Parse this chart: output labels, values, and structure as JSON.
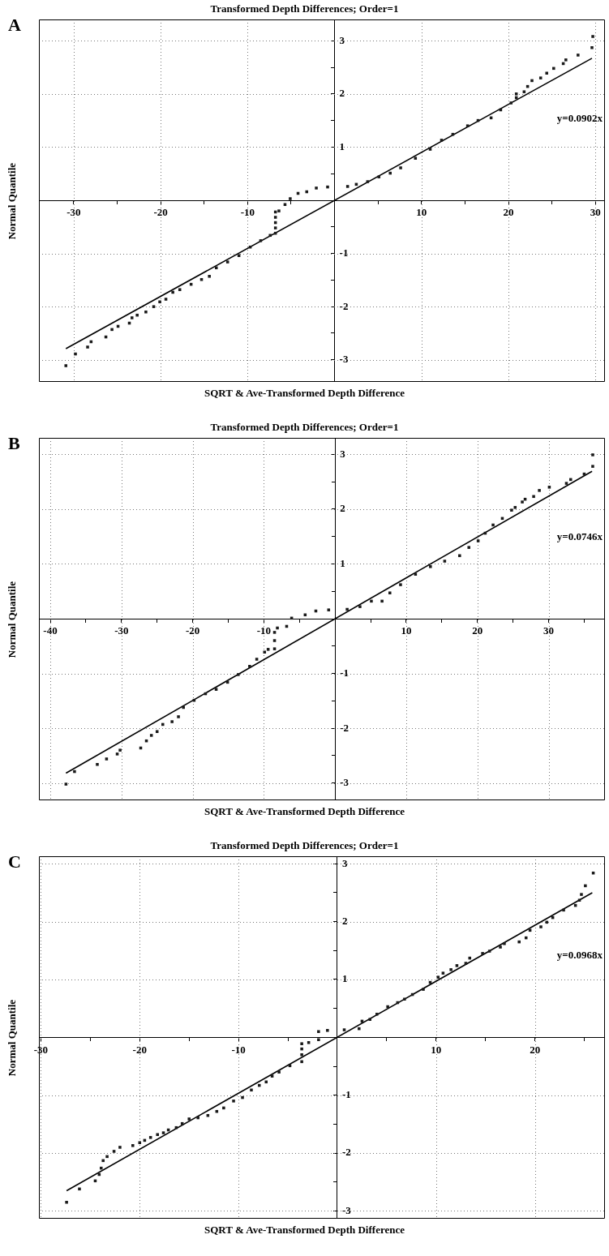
{
  "chart_data": [
    {
      "type": "scatter",
      "title": "Transformed Depth Differences; Order=1",
      "xlabel": "SQRT & Ave-Transformed Depth Difference",
      "ylabel": "Normal Quantile",
      "annotations": [
        "A",
        "y=0.0902x"
      ],
      "xlim": [
        -34,
        31
      ],
      "ylim": [
        -3.4,
        3.4
      ],
      "grid": true,
      "xticks": [
        -30,
        {
          "value": -25,
          "label": null
        },
        -20,
        {
          "value": -15,
          "label": null
        },
        -10,
        {
          "value": -5,
          "label": null
        },
        {
          "value": 0,
          "label": null
        },
        {
          "value": 5,
          "label": null
        },
        10,
        {
          "value": 15,
          "label": null
        },
        20,
        {
          "value": 25,
          "label": null
        },
        30
      ],
      "yticks": [
        -3,
        {
          "value": -2.5,
          "label": null
        },
        -2,
        {
          "value": -1.5,
          "label": null
        },
        -1,
        {
          "value": -0.5,
          "label": null
        },
        {
          "value": 0,
          "label": null
        },
        {
          "value": 0.5,
          "label": null
        },
        1,
        {
          "value": 1.5,
          "label": null
        },
        2,
        {
          "value": 2.5,
          "label": null
        },
        3
      ],
      "series": [
        {
          "color": "#1a1a1a",
          "marker": "square",
          "x": [
            -30.9,
            -29.8,
            -28.4,
            -28.0,
            -26.3,
            -25.6,
            -24.9,
            -23.6,
            -23.3,
            -22.7,
            -21.7,
            -20.8,
            -20.1,
            -19.4,
            -18.6,
            -17.8,
            -16.5,
            -15.3,
            -14.4,
            -13.6,
            -12.3,
            -11.0,
            -9.7,
            -8.5,
            -7.4,
            -6.8,
            -6.8,
            -6.8,
            -6.8,
            -6.8,
            -6.4,
            -5.7,
            -5.1,
            -4.2,
            -3.2,
            -2.1,
            -0.8,
            1.5,
            2.5,
            3.8,
            5.1,
            6.4,
            7.6,
            9.3,
            11.0,
            12.3,
            13.6,
            15.3,
            16.5,
            18.0,
            19.1,
            20.3,
            20.9,
            20.9,
            21.8,
            22.2,
            22.7,
            23.7,
            24.4,
            25.2,
            26.3,
            26.6,
            28.0,
            29.6,
            29.7
          ],
          "values": [
            -3.11,
            -2.89,
            -2.76,
            -2.66,
            -2.57,
            -2.43,
            -2.37,
            -2.31,
            -2.21,
            -2.16,
            -2.1,
            -2.0,
            -1.91,
            -1.86,
            -1.73,
            -1.68,
            -1.58,
            -1.49,
            -1.43,
            -1.27,
            -1.16,
            -1.04,
            -0.88,
            -0.76,
            -0.66,
            -0.62,
            -0.52,
            -0.42,
            -0.32,
            -0.22,
            -0.2,
            -0.08,
            0.03,
            0.13,
            0.16,
            0.23,
            0.25,
            0.26,
            0.3,
            0.35,
            0.44,
            0.51,
            0.61,
            0.79,
            0.96,
            1.13,
            1.24,
            1.4,
            1.5,
            1.55,
            1.7,
            1.83,
            1.93,
            2.0,
            2.04,
            2.14,
            2.25,
            2.3,
            2.39,
            2.48,
            2.57,
            2.64,
            2.73,
            2.87,
            3.08
          ]
        },
        {
          "type": "line",
          "color": "#000000",
          "marker": "none",
          "x": [
            -30.9,
            29.6
          ],
          "values": [
            -2.79,
            2.67
          ]
        }
      ]
    },
    {
      "type": "scatter",
      "title": "Transformed Depth Differences; Order=1",
      "xlabel": "SQRT & Ave-Transformed Depth Difference",
      "ylabel": "Normal Quantile",
      "annotations": [
        "B",
        "y=0.0746x"
      ],
      "xlim": [
        -41.6,
        37.8
      ],
      "ylim": [
        -3.3,
        3.3
      ],
      "grid": true,
      "xticks": [
        -40,
        {
          "value": -35,
          "label": null
        },
        -30,
        {
          "value": -25,
          "label": null
        },
        -20,
        {
          "value": -15,
          "label": null
        },
        -10,
        {
          "value": -5,
          "label": null
        },
        {
          "value": 0,
          "label": null
        },
        {
          "value": 5,
          "label": null
        },
        10,
        {
          "value": 15,
          "label": null
        },
        20,
        {
          "value": 25,
          "label": null
        },
        30,
        {
          "value": 35,
          "label": null
        }
      ],
      "yticks": [
        -3,
        {
          "value": -2.5,
          "label": null
        },
        -2,
        {
          "value": -1.5,
          "label": null
        },
        -1,
        {
          "value": -0.5,
          "label": null
        },
        {
          "value": 0,
          "label": null
        },
        {
          "value": 0.5,
          "label": null
        },
        1,
        {
          "value": 1.5,
          "label": null
        },
        2,
        {
          "value": 2.5,
          "label": null
        },
        3
      ],
      "series": [
        {
          "color": "#1a1a1a",
          "marker": "square",
          "x": [
            -37.8,
            -36.6,
            -33.4,
            -32.1,
            -30.6,
            -30.2,
            -27.3,
            -26.5,
            -25.8,
            -25.0,
            -24.2,
            -22.9,
            -22.0,
            -21.3,
            -19.8,
            -18.2,
            -16.7,
            -15.1,
            -13.6,
            -12.0,
            -11.0,
            -9.9,
            -9.4,
            -8.5,
            -8.5,
            -8.5,
            -8.1,
            -6.8,
            -6.1,
            -4.2,
            -2.7,
            -0.9,
            1.7,
            3.5,
            5.1,
            6.6,
            7.7,
            9.2,
            11.3,
            13.4,
            15.4,
            17.5,
            18.8,
            20.1,
            21.1,
            22.2,
            23.5,
            24.8,
            25.3,
            26.3,
            26.7,
            27.9,
            28.7,
            30.1,
            32.5,
            33.1,
            35.0,
            36.2,
            36.2
          ],
          "values": [
            -3.02,
            -2.79,
            -2.66,
            -2.56,
            -2.47,
            -2.4,
            -2.36,
            -2.23,
            -2.13,
            -2.06,
            -1.93,
            -1.88,
            -1.79,
            -1.62,
            -1.49,
            -1.37,
            -1.29,
            -1.16,
            -1.02,
            -0.87,
            -0.74,
            -0.61,
            -0.56,
            -0.55,
            -0.4,
            -0.25,
            -0.17,
            -0.14,
            0.01,
            0.07,
            0.14,
            0.16,
            0.17,
            0.22,
            0.32,
            0.32,
            0.47,
            0.62,
            0.81,
            0.95,
            1.05,
            1.15,
            1.3,
            1.42,
            1.56,
            1.71,
            1.83,
            1.98,
            2.03,
            2.13,
            2.18,
            2.23,
            2.34,
            2.4,
            2.47,
            2.54,
            2.64,
            2.78,
            2.99
          ]
        },
        {
          "type": "line",
          "color": "#000000",
          "marker": "none",
          "x": [
            -37.8,
            36.1
          ],
          "values": [
            -2.82,
            2.69
          ]
        }
      ]
    },
    {
      "type": "scatter",
      "title": "Transformed Depth Differences; Order=1",
      "xlabel": "SQRT & Ave-Transformed Depth Difference",
      "ylabel": "Normal Quantile",
      "annotations": [
        "C",
        "y=0.0968x"
      ],
      "xlim": [
        -30.2,
        27
      ],
      "ylim": [
        -3.12,
        3.13
      ],
      "grid": true,
      "xticks": [
        -30,
        {
          "value": -25,
          "label": null
        },
        -20,
        {
          "value": -15,
          "label": null
        },
        -10,
        {
          "value": -5,
          "label": null
        },
        {
          "value": 0,
          "label": null
        },
        {
          "value": 5,
          "label": null
        },
        10,
        {
          "value": 15,
          "label": null
        },
        20,
        {
          "value": 25,
          "label": null
        }
      ],
      "yticks": [
        -3,
        {
          "value": -2.5,
          "label": null
        },
        -2,
        {
          "value": -1.5,
          "label": null
        },
        -1,
        {
          "value": -0.5,
          "label": null
        },
        {
          "value": 0,
          "label": null
        },
        {
          "value": 0.5,
          "label": null
        },
        1,
        {
          "value": 1.5,
          "label": null
        },
        2,
        {
          "value": 2.5,
          "label": null
        },
        3
      ],
      "series": [
        {
          "color": "#1a1a1a",
          "marker": "square",
          "x": [
            -27.4,
            -26.1,
            -24.5,
            -24.1,
            -23.9,
            -23.7,
            -23.3,
            -22.6,
            -22.0,
            -20.7,
            -20.0,
            -19.5,
            -18.9,
            -18.2,
            -17.6,
            -17.1,
            -16.3,
            -15.7,
            -15.0,
            -14.1,
            -13.1,
            -12.2,
            -11.5,
            -10.5,
            -9.6,
            -8.7,
            -7.9,
            -7.2,
            -6.6,
            -5.9,
            -4.8,
            -3.6,
            -3.6,
            -3.6,
            -3.6,
            -2.9,
            -1.9,
            -1.9,
            -1.0,
            0.7,
            2.2,
            2.5,
            3.3,
            4.0,
            5.1,
            6.1,
            6.8,
            7.6,
            8.7,
            9.4,
            10.2,
            10.7,
            11.5,
            12.1,
            13.0,
            13.4,
            14.7,
            15.4,
            16.5,
            16.9,
            18.4,
            19.1,
            19.5,
            20.6,
            21.2,
            21.8,
            22.9,
            24.1,
            24.5,
            24.7,
            25.1,
            25.9
          ],
          "values": [
            -2.85,
            -2.62,
            -2.48,
            -2.37,
            -2.26,
            -2.13,
            -2.06,
            -1.97,
            -1.9,
            -1.87,
            -1.82,
            -1.78,
            -1.73,
            -1.68,
            -1.65,
            -1.6,
            -1.56,
            -1.49,
            -1.41,
            -1.39,
            -1.35,
            -1.28,
            -1.22,
            -1.1,
            -1.04,
            -0.91,
            -0.83,
            -0.77,
            -0.67,
            -0.6,
            -0.49,
            -0.42,
            -0.3,
            -0.2,
            -0.11,
            -0.09,
            -0.04,
            0.1,
            0.12,
            0.13,
            0.15,
            0.28,
            0.31,
            0.4,
            0.53,
            0.6,
            0.66,
            0.74,
            0.83,
            0.95,
            1.04,
            1.11,
            1.17,
            1.24,
            1.28,
            1.37,
            1.45,
            1.49,
            1.56,
            1.62,
            1.65,
            1.72,
            1.85,
            1.91,
            1.99,
            2.07,
            2.2,
            2.28,
            2.37,
            2.47,
            2.62,
            2.84
          ]
        },
        {
          "type": "line",
          "color": "#000000",
          "marker": "none",
          "x": [
            -27.4,
            25.8
          ],
          "values": [
            -2.65,
            2.5
          ]
        }
      ]
    }
  ]
}
